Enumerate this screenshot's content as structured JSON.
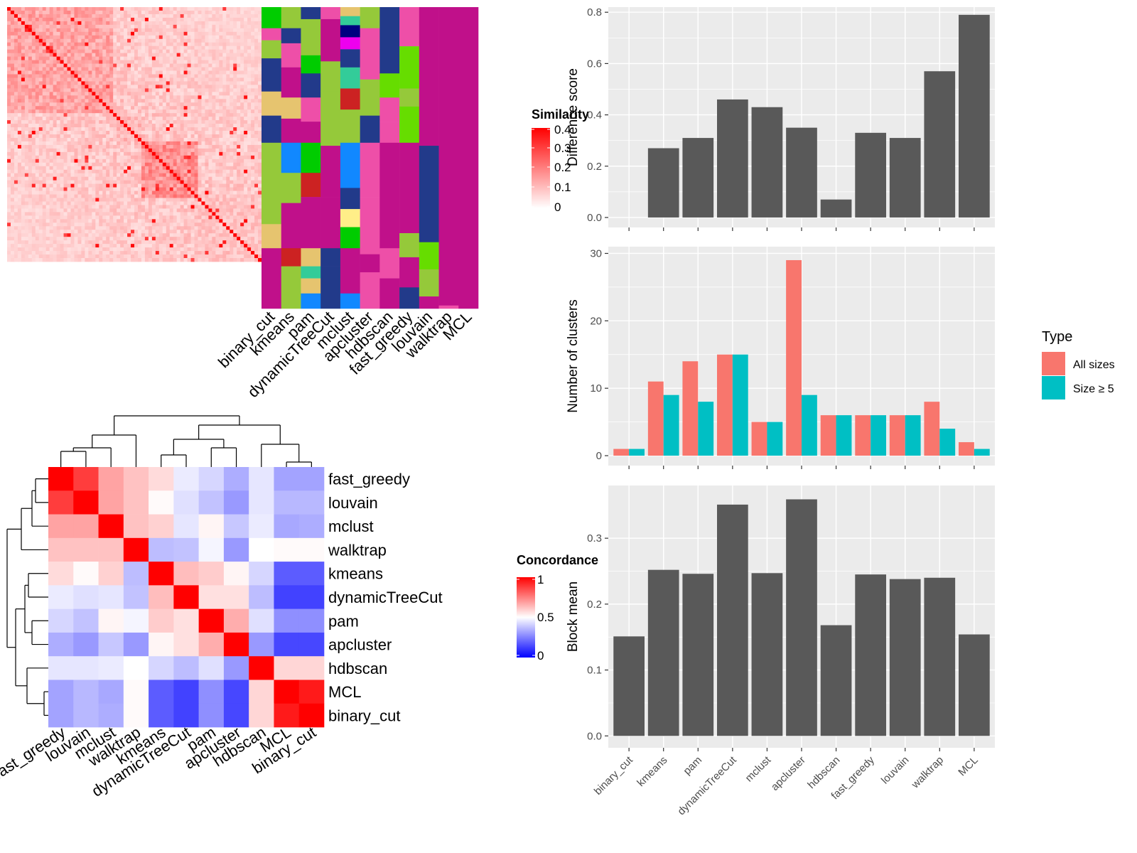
{
  "colors": {
    "bar_fill": "#595959",
    "all_sizes": "#F8766D",
    "size_ge5": "#00BFC4",
    "panel_bg": "#EBEBEB",
    "similarity_high": "#FF0000",
    "concordance_high": "#FF0000",
    "concordance_mid": "#FFFFFF",
    "concordance_low": "#0000FF"
  },
  "similarity_heatmap": {
    "legend_title": "Similarity",
    "legend_ticks": [
      "0.4",
      "0.3",
      "0.2",
      "0.1",
      "0"
    ],
    "method_columns": [
      "binary_cut",
      "kmeans",
      "pam",
      "dynamicTreeCut",
      "mclust",
      "apcluster",
      "hdbscan",
      "fast_greedy",
      "louvain",
      "walktrap",
      "MCL"
    ]
  },
  "concordance_heatmap": {
    "legend_title": "Concordance",
    "legend_ticks": [
      "1",
      "0.5",
      "0"
    ],
    "labels": [
      "fast_greedy",
      "louvain",
      "mclust",
      "walktrap",
      "kmeans",
      "dynamicTreeCut",
      "pam",
      "apcluster",
      "hdbscan",
      "MCL",
      "binary_cut"
    ],
    "values": [
      [
        1.0,
        0.88,
        0.68,
        0.62,
        0.57,
        0.46,
        0.42,
        0.34,
        0.45,
        0.32,
        0.32
      ],
      [
        0.88,
        1.0,
        0.68,
        0.62,
        0.51,
        0.44,
        0.38,
        0.3,
        0.45,
        0.36,
        0.36
      ],
      [
        0.68,
        0.68,
        1.0,
        0.62,
        0.59,
        0.45,
        0.52,
        0.39,
        0.46,
        0.33,
        0.34
      ],
      [
        0.62,
        0.62,
        0.62,
        1.0,
        0.37,
        0.38,
        0.48,
        0.3,
        0.5,
        0.51,
        0.51
      ],
      [
        0.57,
        0.51,
        0.59,
        0.37,
        1.0,
        0.63,
        0.6,
        0.52,
        0.42,
        0.18,
        0.18
      ],
      [
        0.46,
        0.44,
        0.45,
        0.38,
        0.63,
        1.0,
        0.56,
        0.56,
        0.37,
        0.13,
        0.13
      ],
      [
        0.42,
        0.38,
        0.52,
        0.48,
        0.6,
        0.56,
        1.0,
        0.66,
        0.44,
        0.28,
        0.28
      ],
      [
        0.34,
        0.3,
        0.39,
        0.3,
        0.52,
        0.56,
        0.66,
        1.0,
        0.3,
        0.14,
        0.14
      ],
      [
        0.45,
        0.45,
        0.46,
        0.5,
        0.42,
        0.37,
        0.44,
        0.3,
        1.0,
        0.58,
        0.58
      ],
      [
        0.32,
        0.36,
        0.33,
        0.51,
        0.18,
        0.13,
        0.28,
        0.14,
        0.58,
        1.0,
        0.95
      ],
      [
        0.32,
        0.36,
        0.34,
        0.51,
        0.18,
        0.13,
        0.28,
        0.14,
        0.58,
        0.95,
        1.0
      ]
    ]
  },
  "chart_data": [
    {
      "type": "bar",
      "categories": [
        "binary_cut",
        "kmeans",
        "pam",
        "dynamicTreeCut",
        "mclust",
        "apcluster",
        "hdbscan",
        "fast_greedy",
        "louvain",
        "walktrap",
        "MCL"
      ],
      "values": [
        0.0,
        0.27,
        0.31,
        0.46,
        0.43,
        0.35,
        0.07,
        0.33,
        0.31,
        0.57,
        0.79
      ],
      "ylabel": "Difference score",
      "ylim": [
        0,
        0.82
      ],
      "yticks": [
        0.0,
        0.2,
        0.4,
        0.6,
        0.8
      ],
      "ytick_labels": [
        "0.0",
        "0.2",
        "0.4",
        "0.6",
        "0.8"
      ],
      "grid": true
    },
    {
      "type": "bar",
      "categories": [
        "binary_cut",
        "kmeans",
        "pam",
        "dynamicTreeCut",
        "mclust",
        "apcluster",
        "hdbscan",
        "fast_greedy",
        "louvain",
        "walktrap",
        "MCL"
      ],
      "series": [
        {
          "name": "All sizes",
          "values": [
            1,
            11,
            14,
            15,
            5,
            29,
            6,
            6,
            6,
            8,
            2
          ]
        },
        {
          "name": "Size ≥ 5",
          "values": [
            1,
            9,
            8,
            15,
            5,
            9,
            6,
            6,
            6,
            4,
            1
          ]
        }
      ],
      "ylabel": "Number of clusters",
      "ylim": [
        0,
        31
      ],
      "yticks": [
        0,
        10,
        20,
        30
      ],
      "ytick_labels": [
        "0",
        "10",
        "20",
        "30"
      ],
      "legend_title": "Type",
      "legend_position": "right",
      "grid": true
    },
    {
      "type": "bar",
      "categories": [
        "binary_cut",
        "kmeans",
        "pam",
        "dynamicTreeCut",
        "mclust",
        "apcluster",
        "hdbscan",
        "fast_greedy",
        "louvain",
        "walktrap",
        "MCL"
      ],
      "values": [
        0.151,
        0.252,
        0.246,
        0.351,
        0.247,
        0.359,
        0.168,
        0.245,
        0.238,
        0.24,
        0.154
      ],
      "ylabel": "Block mean",
      "ylim": [
        0,
        0.38
      ],
      "yticks": [
        0.0,
        0.1,
        0.2,
        0.3
      ],
      "ytick_labels": [
        "0.0",
        "0.1",
        "0.2",
        "0.3"
      ],
      "grid": true
    }
  ]
}
